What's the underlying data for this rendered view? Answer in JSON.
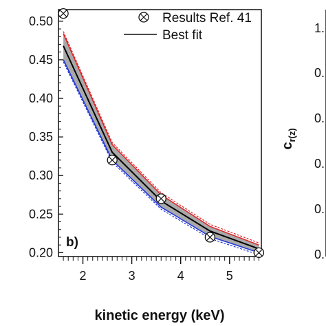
{
  "chart_data": {
    "type": "line",
    "panel_label": "b)",
    "xlabel": "kinetic energy (keV)",
    "ylabel": "",
    "xlim": [
      1.5,
      5.65
    ],
    "ylim": [
      0.195,
      0.515
    ],
    "x_ticks": [
      "2",
      "3",
      "4",
      "5"
    ],
    "y_ticks": [
      "0.20",
      "0.25",
      "0.30",
      "0.35",
      "0.40",
      "0.45",
      "0.50"
    ],
    "legend_placement": "top-right",
    "legend": [
      "Results Ref. 41",
      "Best fit"
    ],
    "series": [
      {
        "name": "Results Ref. 41",
        "style": "circle-x markers",
        "color": "#000000",
        "x": [
          1.6,
          2.6,
          3.6,
          4.6,
          5.6
        ],
        "y": [
          0.51,
          0.32,
          0.27,
          0.22,
          0.2
        ]
      },
      {
        "name": "Best fit",
        "style": "solid line",
        "color": "#000000",
        "x": [
          1.6,
          2.6,
          3.6,
          4.6,
          5.6
        ],
        "y": [
          0.468,
          0.33,
          0.267,
          0.228,
          0.205
        ]
      },
      {
        "style": "upper bound (red, dashed)",
        "color": "#e0262a",
        "x": [
          1.6,
          2.6,
          3.6,
          4.6,
          5.6
        ],
        "y": [
          0.484,
          0.34,
          0.275,
          0.234,
          0.21
        ]
      },
      {
        "style": "lower bound (blue, dashed)",
        "color": "#2236d6",
        "x": [
          1.6,
          2.6,
          3.6,
          4.6,
          5.6
        ],
        "y": [
          0.45,
          0.32,
          0.259,
          0.221,
          0.2
        ]
      }
    ],
    "band_color": "#a9a9a9",
    "right_panel": {
      "ylabel": "c",
      "ylabel_subscript": "r(z)",
      "tick_fragments": [
        "1.",
        "0.",
        "0.",
        "0.",
        "0.",
        "0."
      ]
    }
  }
}
